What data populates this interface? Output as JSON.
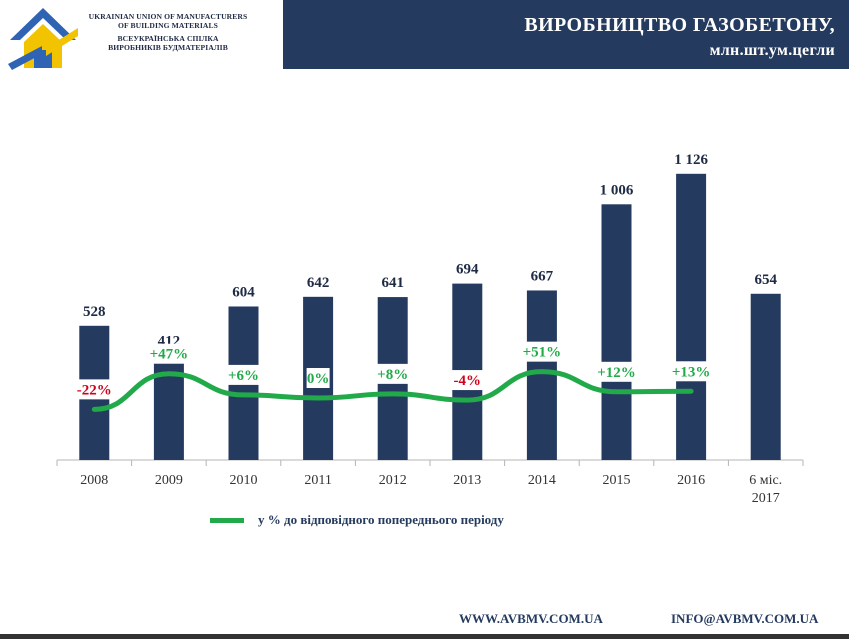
{
  "header": {
    "org_en_line1": "UKRAINIAN UNION OF MANUFACTURERS",
    "org_en_line2": "OF BUILDING MATERIALS",
    "org_ua_line1": "ВСЕУКРАЇНСЬКА СПІЛКА",
    "org_ua_line2": "ВИРОБНИКІВ БУДМАТЕРІАЛІВ",
    "title": "ВИРОБНИЦТВО ГАЗОБЕТОНУ,",
    "subtitle": "млн.шт.ум.цегли"
  },
  "legend": {
    "label": "у % до відповідного попереднього періоду"
  },
  "footer": {
    "website": "WWW.AVBMV.COM.UA",
    "email": "INFO@AVBMV.COM.UA"
  },
  "colors": {
    "bar": "#243a5e",
    "line": "#22aa4a",
    "positive": "#22aa4a",
    "negative": "#d0021b",
    "header_bg": "#243a5e",
    "logo_blue": "#2f63b4",
    "logo_yellow": "#f2c300"
  },
  "icons": {
    "logo": "house-logo-icon"
  },
  "chart_data": {
    "type": "bar",
    "categories": [
      "2008",
      "2009",
      "2010",
      "2011",
      "2012",
      "2013",
      "2014",
      "2015",
      "2016",
      "6 міс.\n2017"
    ],
    "series": [
      {
        "type": "bar",
        "values": [
          528,
          412,
          604,
          642,
          641,
          694,
          667,
          1006,
          1126,
          654
        ],
        "value_labels": [
          "528",
          "412",
          "604",
          "642",
          "641",
          "694",
          "667",
          "1 006",
          "1 126",
          "654"
        ]
      },
      {
        "type": "line",
        "name": "у % до відповідного попереднього періоду",
        "values": [
          -22,
          47,
          6,
          0,
          8,
          -4,
          51,
          12,
          13,
          null
        ],
        "value_labels": [
          "-22%",
          "+47%",
          "+6%",
          "0%",
          "+8%",
          "-4%",
          "+51%",
          "+12%",
          "+13%"
        ]
      }
    ],
    "ylim": [
      0,
      1200
    ],
    "grid": false,
    "legend_position": "bottom-left"
  }
}
